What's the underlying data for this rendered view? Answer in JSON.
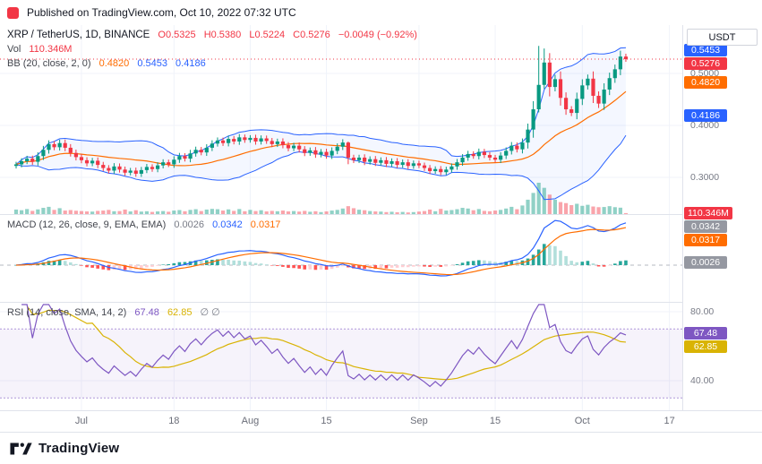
{
  "header": {
    "published_text": "Published on TradingView.com, Oct 10, 2022 07:32 UTC"
  },
  "footer": {
    "brand": "TradingView"
  },
  "legend": {
    "symbol": "XRP / TetherUS, 1D, BINANCE",
    "o": "O0.5325",
    "h": "H0.5380",
    "l": "L0.5224",
    "c": "C0.5276",
    "change": "−0.0049 (−0.92%)",
    "vol_label": "Vol",
    "vol_value": "110.346M",
    "bb_label": "BB (20, close, 2, 0)",
    "bb_basis": "0.4820",
    "bb_upper": "0.5453",
    "bb_lower": "0.4186",
    "macd_label": "MACD (12, 26, close, 9, EMA, EMA)",
    "macd_hist": "0.0026",
    "macd_macd": "0.0342",
    "macd_signal": "0.0317",
    "rsi_label": "RSI (14, close, SMA, 14, 2)",
    "rsi_value": "67.48",
    "rsi_ma": "62.85",
    "rsi_extra": "∅ ∅"
  },
  "price_axis": {
    "currency": "USDT",
    "price_labels": [
      {
        "text": "0.5000",
        "value": 0.5
      },
      {
        "text": "0.4000",
        "value": 0.4
      },
      {
        "text": "0.3000",
        "value": 0.3
      }
    ],
    "rsi_labels": [
      {
        "text": "80.00",
        "value": 80
      },
      {
        "text": "40.00",
        "value": 40
      }
    ],
    "badges": [
      {
        "text": "0.5453",
        "value": 0.5453,
        "pane": "price",
        "color": "#2962FF"
      },
      {
        "text": "0.5276",
        "value": 0.5276,
        "pane": "price",
        "color": "#F23645"
      },
      {
        "text": "0.4820",
        "value": 0.482,
        "pane": "price",
        "color": "#FF6D00"
      },
      {
        "text": "0.4186",
        "value": 0.4186,
        "pane": "price",
        "color": "#2962FF"
      },
      {
        "text": "110.346M",
        "value": 110.346,
        "pane": "volume",
        "color": "#F23645"
      },
      {
        "text": "0.0342",
        "value": 0.0342,
        "pane": "macd",
        "color": "#9598A1"
      },
      {
        "text": "0.0317",
        "value": 0.0317,
        "pane": "macd",
        "color": "#FF6D00"
      },
      {
        "text": "0.0026",
        "value": 0.0026,
        "pane": "macd",
        "color": "#9598A1"
      },
      {
        "text": "67.48",
        "value": 67.48,
        "pane": "rsi",
        "color": "#7E57C2"
      },
      {
        "text": "62.85",
        "value": 62.85,
        "pane": "rsi",
        "color": "#D9B304"
      }
    ]
  },
  "time_axis": {
    "ticks": [
      {
        "label": "Jul",
        "index": 12
      },
      {
        "label": "18",
        "index": 29
      },
      {
        "label": "Aug",
        "index": 43
      },
      {
        "label": "15",
        "index": 57
      },
      {
        "label": "Sep",
        "index": 74
      },
      {
        "label": "15",
        "index": 88
      },
      {
        "label": "Oct",
        "index": 104
      },
      {
        "label": "17",
        "index": 120
      }
    ]
  },
  "colors": {
    "up": "#089981",
    "down": "#F23645",
    "bb": "#2962FF",
    "basis": "#FF6D00",
    "macd": "#2962FF",
    "signal": "#FF6D00",
    "hist_pos": "#26A69A",
    "hist_pos_weak": "#B2DFDB",
    "hist_neg": "#FF5252",
    "hist_neg_weak": "#FFCDD2",
    "rsi": "#7E57C2",
    "rsi_ma": "#D9B304",
    "rsi_band": "#9B7DCF",
    "grid": "#F0F3FA",
    "muted": "#787B86",
    "price_line": "#F23645"
  },
  "chart_data": [
    {
      "type": "candlestick",
      "symbol": "XRP / TetherUS",
      "exchange": "BINANCE",
      "interval": "1D",
      "title": "XRP / TetherUS, 1D, BINANCE",
      "ohlc_last": {
        "o": 0.5325,
        "h": 0.538,
        "l": 0.5224,
        "c": 0.5276
      },
      "change": -0.0049,
      "change_pct": -0.92,
      "volume_last_m": 110.346,
      "ylim": [
        0.228,
        0.593
      ],
      "grid_values": [
        0.5,
        0.4,
        0.3
      ],
      "open_first": 0.322,
      "closes": [
        0.325,
        0.331,
        0.336,
        0.33,
        0.341,
        0.353,
        0.364,
        0.358,
        0.366,
        0.357,
        0.347,
        0.339,
        0.333,
        0.327,
        0.332,
        0.324,
        0.318,
        0.313,
        0.321,
        0.315,
        0.309,
        0.313,
        0.307,
        0.314,
        0.32,
        0.316,
        0.323,
        0.329,
        0.325,
        0.334,
        0.341,
        0.336,
        0.346,
        0.353,
        0.348,
        0.357,
        0.365,
        0.371,
        0.366,
        0.374,
        0.369,
        0.377,
        0.372,
        0.376,
        0.369,
        0.375,
        0.37,
        0.364,
        0.369,
        0.362,
        0.356,
        0.361,
        0.354,
        0.347,
        0.352,
        0.344,
        0.349,
        0.342,
        0.351,
        0.359,
        0.367,
        0.338,
        0.333,
        0.338,
        0.33,
        0.335,
        0.328,
        0.333,
        0.326,
        0.331,
        0.324,
        0.329,
        0.322,
        0.327,
        0.323,
        0.318,
        0.312,
        0.316,
        0.31,
        0.315,
        0.321,
        0.329,
        0.338,
        0.345,
        0.341,
        0.349,
        0.343,
        0.338,
        0.334,
        0.342,
        0.351,
        0.361,
        0.354,
        0.367,
        0.392,
        0.431,
        0.478,
        0.521,
        0.474,
        0.489,
        0.453,
        0.431,
        0.424,
        0.451,
        0.477,
        0.49,
        0.457,
        0.442,
        0.469,
        0.491,
        0.508,
        0.5325,
        0.5276
      ],
      "volumes_m": [
        320,
        280,
        350,
        240,
        330,
        420,
        480,
        300,
        400,
        260,
        290,
        250,
        230,
        210,
        200,
        240,
        260,
        300,
        220,
        230,
        320,
        210,
        280,
        200,
        220,
        180,
        210,
        230,
        190,
        260,
        290,
        220,
        300,
        340,
        230,
        320,
        360,
        340,
        260,
        330,
        240,
        350,
        220,
        300,
        230,
        280,
        210,
        240,
        220,
        260,
        210,
        230,
        200,
        240,
        190,
        220,
        170,
        210,
        260,
        300,
        380,
        520,
        400,
        310,
        280,
        230,
        210,
        200,
        170,
        190,
        160,
        180,
        150,
        170,
        200,
        230,
        320,
        220,
        360,
        260,
        290,
        340,
        420,
        380,
        280,
        350,
        240,
        220,
        260,
        300,
        380,
        480,
        340,
        560,
        900,
        1300,
        1900,
        1600,
        1200,
        900,
        760,
        700,
        580,
        660,
        540,
        600,
        500,
        460,
        470,
        520,
        460,
        430,
        110.346
      ],
      "overrides": {
        "61": {
          "h": 0.369
        },
        "96": {
          "h": 0.553,
          "l": 0.425
        },
        "97": {
          "h": 0.548,
          "l": 0.47
        },
        "112": {
          "o": 0.5325,
          "h": 0.538,
          "l": 0.5224,
          "c": 0.5276
        }
      },
      "indicators": {
        "bollinger": {
          "length": 20,
          "source": "close",
          "mult": 2,
          "offset": 0,
          "basis_last": 0.482,
          "upper_last": 0.5453,
          "lower_last": 0.4186
        }
      }
    },
    {
      "type": "macd",
      "params": "12, 26, close, 9, EMA, EMA",
      "derived_from": "closes",
      "hist_last": 0.0026,
      "macd_last": 0.0342,
      "signal_last": 0.0317,
      "zero_line": 0
    },
    {
      "type": "rsi",
      "params": "14, close, SMA, 14, 2",
      "derived_from": "closes",
      "rsi_last": 67.48,
      "ma_last": 62.85,
      "grid_values": [
        80,
        40
      ],
      "bands": [
        70,
        30
      ]
    }
  ]
}
